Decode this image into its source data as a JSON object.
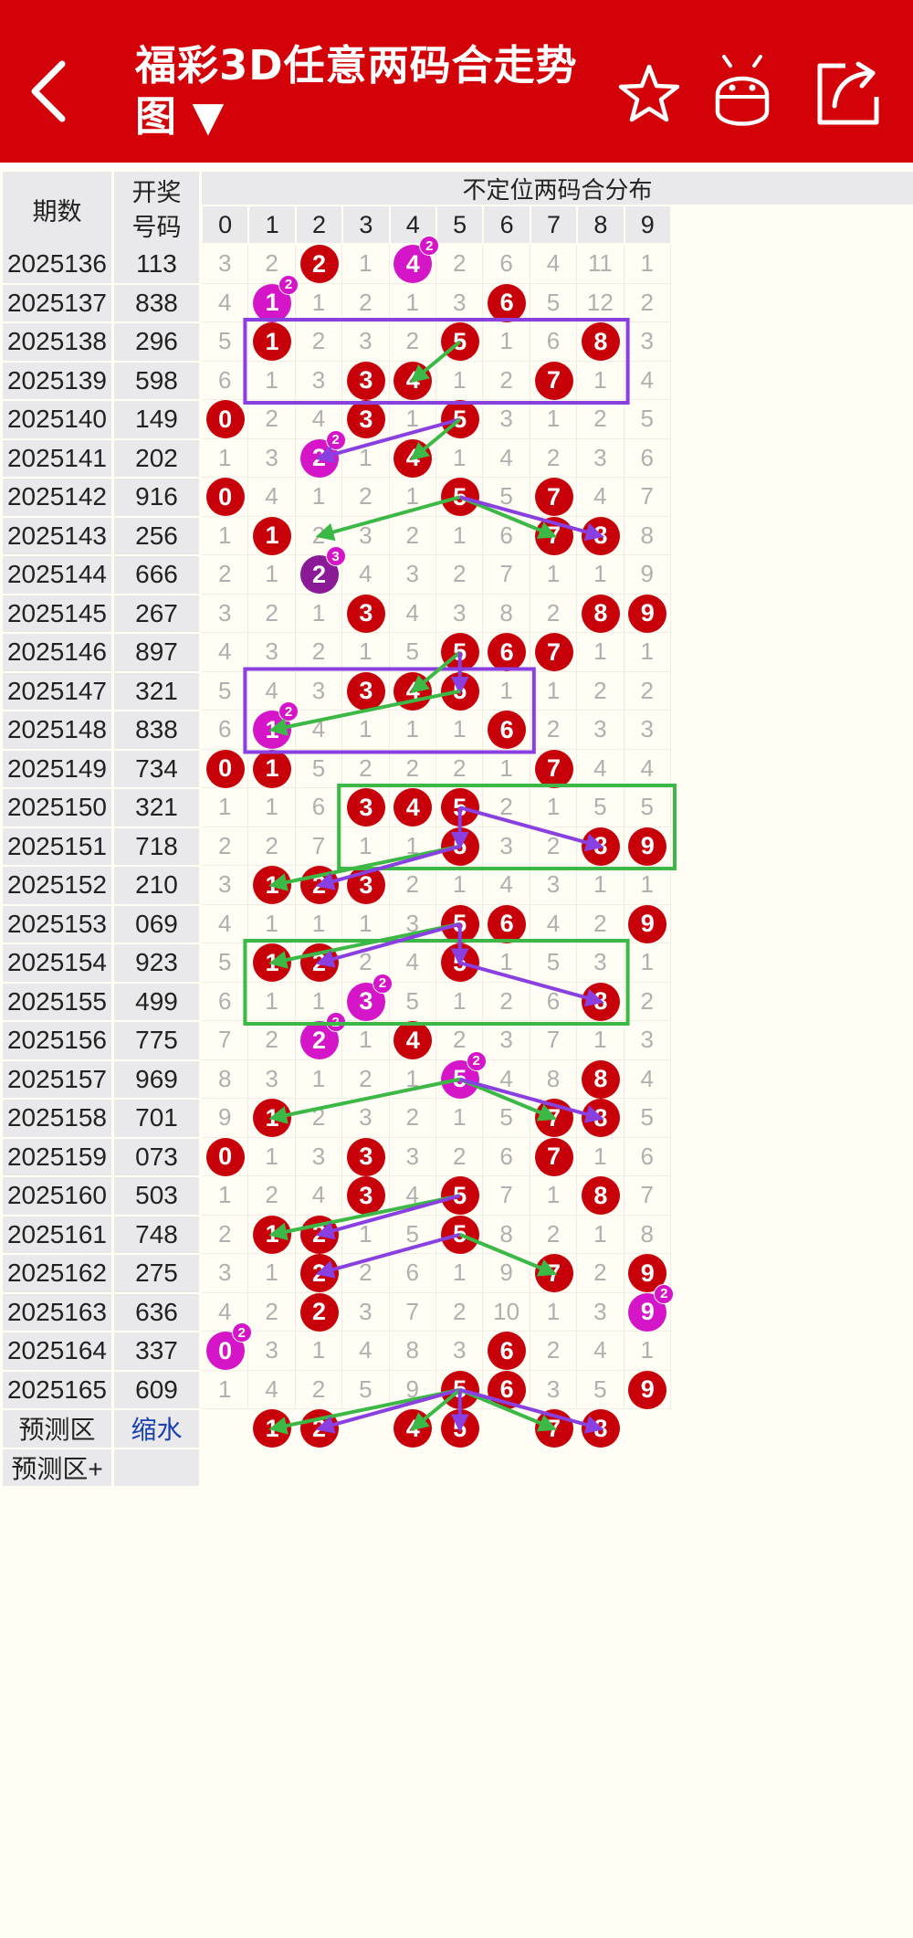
{
  "header": {
    "title": "福彩3D任意两码合走势图 ▼"
  },
  "icons": {
    "back": "back-arrow-icon",
    "star": "star-icon",
    "android": "android-icon",
    "share": "share-icon"
  },
  "colors": {
    "header_bg": "#d20208",
    "ball_red": "#c8000a",
    "ball_magenta": "#d416c8",
    "ball_purple": "#8a1a96",
    "line_green": "#3cb846",
    "line_purple": "#8a3fe0"
  },
  "table": {
    "col_period": "期数",
    "col_draw_line1": "开奖",
    "col_draw_line2": "号码",
    "col_distribution": "不定位两码合分布",
    "digits": [
      "0",
      "1",
      "2",
      "3",
      "4",
      "5",
      "6",
      "7",
      "8",
      "9"
    ],
    "rows": [
      {
        "period": "2025136",
        "draw": "113",
        "cells": [
          "3",
          "2",
          "2",
          "1",
          "4",
          "2",
          "6",
          "4",
          "11",
          "1"
        ]
      },
      {
        "period": "2025137",
        "draw": "838",
        "cells": [
          "4",
          "1",
          "1",
          "2",
          "1",
          "3",
          "6",
          "5",
          "12",
          "2"
        ]
      },
      {
        "period": "2025138",
        "draw": "296",
        "cells": [
          "5",
          "1",
          "2",
          "3",
          "2",
          "5",
          "1",
          "6",
          "8",
          "3"
        ]
      },
      {
        "period": "2025139",
        "draw": "598",
        "cells": [
          "6",
          "1",
          "3",
          "3",
          "4",
          "1",
          "2",
          "7",
          "1",
          "4"
        ]
      },
      {
        "period": "2025140",
        "draw": "149",
        "cells": [
          "0",
          "2",
          "4",
          "3",
          "1",
          "5",
          "3",
          "1",
          "2",
          "5"
        ]
      },
      {
        "period": "2025141",
        "draw": "202",
        "cells": [
          "1",
          "3",
          "2",
          "1",
          "4",
          "1",
          "4",
          "2",
          "3",
          "6"
        ]
      },
      {
        "period": "2025142",
        "draw": "916",
        "cells": [
          "0",
          "4",
          "1",
          "2",
          "1",
          "5",
          "5",
          "7",
          "4",
          "7"
        ]
      },
      {
        "period": "2025143",
        "draw": "256",
        "cells": [
          "1",
          "1",
          "2",
          "3",
          "2",
          "1",
          "6",
          "7",
          "8",
          "8"
        ]
      },
      {
        "period": "2025144",
        "draw": "666",
        "cells": [
          "2",
          "1",
          "2",
          "4",
          "3",
          "2",
          "7",
          "1",
          "1",
          "9"
        ]
      },
      {
        "period": "2025145",
        "draw": "267",
        "cells": [
          "3",
          "2",
          "1",
          "3",
          "4",
          "3",
          "8",
          "2",
          "8",
          "9"
        ]
      },
      {
        "period": "2025146",
        "draw": "897",
        "cells": [
          "4",
          "3",
          "2",
          "1",
          "5",
          "5",
          "6",
          "7",
          "1",
          "1"
        ]
      },
      {
        "period": "2025147",
        "draw": "321",
        "cells": [
          "5",
          "4",
          "3",
          "3",
          "4",
          "5",
          "1",
          "1",
          "2",
          "2"
        ]
      },
      {
        "period": "2025148",
        "draw": "838",
        "cells": [
          "6",
          "1",
          "4",
          "1",
          "1",
          "1",
          "6",
          "2",
          "3",
          "3"
        ]
      },
      {
        "period": "2025149",
        "draw": "734",
        "cells": [
          "0",
          "1",
          "5",
          "2",
          "2",
          "2",
          "1",
          "7",
          "4",
          "4"
        ]
      },
      {
        "period": "2025150",
        "draw": "321",
        "cells": [
          "1",
          "1",
          "6",
          "3",
          "4",
          "5",
          "2",
          "1",
          "5",
          "5"
        ]
      },
      {
        "period": "2025151",
        "draw": "718",
        "cells": [
          "2",
          "2",
          "7",
          "1",
          "1",
          "5",
          "3",
          "2",
          "8",
          "9"
        ]
      },
      {
        "period": "2025152",
        "draw": "210",
        "cells": [
          "3",
          "1",
          "2",
          "3",
          "2",
          "1",
          "4",
          "3",
          "1",
          "1"
        ]
      },
      {
        "period": "2025153",
        "draw": "069",
        "cells": [
          "4",
          "1",
          "1",
          "1",
          "3",
          "5",
          "6",
          "4",
          "2",
          "9"
        ]
      },
      {
        "period": "2025154",
        "draw": "923",
        "cells": [
          "5",
          "1",
          "2",
          "2",
          "4",
          "5",
          "1",
          "5",
          "3",
          "1"
        ]
      },
      {
        "period": "2025155",
        "draw": "499",
        "cells": [
          "6",
          "1",
          "1",
          "3",
          "5",
          "1",
          "2",
          "6",
          "8",
          "2"
        ]
      },
      {
        "period": "2025156",
        "draw": "775",
        "cells": [
          "7",
          "2",
          "2",
          "1",
          "4",
          "2",
          "3",
          "7",
          "1",
          "3"
        ]
      },
      {
        "period": "2025157",
        "draw": "969",
        "cells": [
          "8",
          "3",
          "1",
          "2",
          "1",
          "5",
          "4",
          "8",
          "8",
          "4"
        ]
      },
      {
        "period": "2025158",
        "draw": "701",
        "cells": [
          "9",
          "1",
          "2",
          "3",
          "2",
          "1",
          "5",
          "7",
          "8",
          "5"
        ]
      },
      {
        "period": "2025159",
        "draw": "073",
        "cells": [
          "0",
          "1",
          "3",
          "3",
          "3",
          "2",
          "6",
          "7",
          "1",
          "6"
        ]
      },
      {
        "period": "2025160",
        "draw": "503",
        "cells": [
          "1",
          "2",
          "4",
          "3",
          "4",
          "5",
          "7",
          "1",
          "8",
          "7"
        ]
      },
      {
        "period": "2025161",
        "draw": "748",
        "cells": [
          "2",
          "1",
          "2",
          "1",
          "5",
          "5",
          "8",
          "2",
          "1",
          "8"
        ]
      },
      {
        "period": "2025162",
        "draw": "275",
        "cells": [
          "3",
          "1",
          "2",
          "2",
          "6",
          "1",
          "9",
          "7",
          "2",
          "9"
        ]
      },
      {
        "period": "2025163",
        "draw": "636",
        "cells": [
          "4",
          "2",
          "2",
          "3",
          "7",
          "2",
          "10",
          "1",
          "3",
          "9"
        ]
      },
      {
        "period": "2025164",
        "draw": "337",
        "cells": [
          "0",
          "3",
          "1",
          "4",
          "8",
          "3",
          "6",
          "2",
          "4",
          "1"
        ]
      },
      {
        "period": "2025165",
        "draw": "609",
        "cells": [
          "1",
          "4",
          "2",
          "5",
          "9",
          "5",
          "6",
          "3",
          "5",
          "9"
        ]
      }
    ],
    "balls": [
      [
        0,
        2,
        "red",
        ""
      ],
      [
        0,
        4,
        "magenta",
        "2"
      ],
      [
        1,
        1,
        "magenta",
        "2"
      ],
      [
        1,
        6,
        "red",
        ""
      ],
      [
        2,
        1,
        "red",
        ""
      ],
      [
        2,
        5,
        "red",
        ""
      ],
      [
        2,
        8,
        "red",
        ""
      ],
      [
        3,
        3,
        "red",
        ""
      ],
      [
        3,
        4,
        "red",
        ""
      ],
      [
        3,
        7,
        "red",
        ""
      ],
      [
        4,
        0,
        "red",
        ""
      ],
      [
        4,
        3,
        "red",
        ""
      ],
      [
        4,
        5,
        "red",
        ""
      ],
      [
        5,
        2,
        "magenta",
        "2"
      ],
      [
        5,
        4,
        "red",
        ""
      ],
      [
        6,
        0,
        "red",
        ""
      ],
      [
        6,
        5,
        "red",
        ""
      ],
      [
        6,
        7,
        "red",
        ""
      ],
      [
        7,
        1,
        "red",
        ""
      ],
      [
        7,
        7,
        "red",
        ""
      ],
      [
        7,
        8,
        "red",
        ""
      ],
      [
        8,
        2,
        "purple",
        "3"
      ],
      [
        9,
        3,
        "red",
        ""
      ],
      [
        9,
        8,
        "red",
        ""
      ],
      [
        9,
        9,
        "red",
        ""
      ],
      [
        10,
        5,
        "red",
        ""
      ],
      [
        10,
        6,
        "red",
        ""
      ],
      [
        10,
        7,
        "red",
        ""
      ],
      [
        11,
        3,
        "red",
        ""
      ],
      [
        11,
        4,
        "red",
        ""
      ],
      [
        11,
        5,
        "red",
        ""
      ],
      [
        12,
        1,
        "magenta",
        "2"
      ],
      [
        12,
        6,
        "red",
        ""
      ],
      [
        13,
        0,
        "red",
        ""
      ],
      [
        13,
        1,
        "red",
        ""
      ],
      [
        13,
        7,
        "red",
        ""
      ],
      [
        14,
        3,
        "red",
        ""
      ],
      [
        14,
        4,
        "red",
        ""
      ],
      [
        14,
        5,
        "red",
        ""
      ],
      [
        15,
        5,
        "red",
        ""
      ],
      [
        15,
        8,
        "red",
        ""
      ],
      [
        15,
        9,
        "red",
        ""
      ],
      [
        16,
        1,
        "red",
        ""
      ],
      [
        16,
        2,
        "red",
        ""
      ],
      [
        16,
        3,
        "red",
        ""
      ],
      [
        17,
        5,
        "red",
        ""
      ],
      [
        17,
        6,
        "red",
        ""
      ],
      [
        17,
        9,
        "red",
        ""
      ],
      [
        18,
        1,
        "red",
        ""
      ],
      [
        18,
        2,
        "red",
        ""
      ],
      [
        18,
        5,
        "red",
        ""
      ],
      [
        19,
        3,
        "magenta",
        "2"
      ],
      [
        19,
        8,
        "red",
        ""
      ],
      [
        20,
        2,
        "magenta",
        "2"
      ],
      [
        20,
        4,
        "red",
        ""
      ],
      [
        21,
        5,
        "magenta",
        "2"
      ],
      [
        21,
        8,
        "red",
        ""
      ],
      [
        22,
        1,
        "red",
        ""
      ],
      [
        22,
        7,
        "red",
        ""
      ],
      [
        22,
        8,
        "red",
        ""
      ],
      [
        23,
        0,
        "red",
        ""
      ],
      [
        23,
        3,
        "red",
        ""
      ],
      [
        23,
        7,
        "red",
        ""
      ],
      [
        24,
        3,
        "red",
        ""
      ],
      [
        24,
        5,
        "red",
        ""
      ],
      [
        24,
        8,
        "red",
        ""
      ],
      [
        25,
        1,
        "red",
        ""
      ],
      [
        25,
        2,
        "red",
        ""
      ],
      [
        25,
        5,
        "red",
        ""
      ],
      [
        26,
        2,
        "red",
        ""
      ],
      [
        26,
        7,
        "red",
        ""
      ],
      [
        26,
        9,
        "red",
        ""
      ],
      [
        27,
        2,
        "red",
        ""
      ],
      [
        27,
        9,
        "magenta",
        "2"
      ],
      [
        28,
        0,
        "magenta",
        "2"
      ],
      [
        28,
        6,
        "red",
        ""
      ],
      [
        29,
        5,
        "red",
        ""
      ],
      [
        29,
        6,
        "red",
        ""
      ],
      [
        29,
        9,
        "red",
        ""
      ]
    ],
    "prediction": {
      "label": "预测区",
      "draw_label": "缩水",
      "balls": [
        "1",
        "2",
        "4",
        "5",
        "7",
        "8"
      ],
      "plus_label": "预测区+"
    }
  }
}
